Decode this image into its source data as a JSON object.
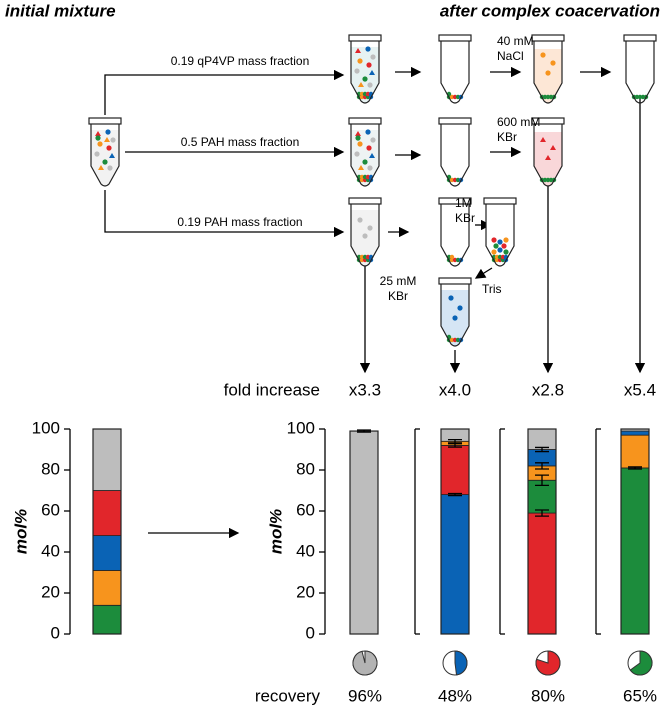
{
  "header": {
    "left": "initial mixture",
    "right": "after complex coacervation"
  },
  "diagram": {
    "routes": [
      "0.19 qP4VP mass fraction",
      "0.5 PAH mass fraction",
      "0.19 PAH mass fraction"
    ],
    "reagents": [
      [
        "40 mM",
        "NaCl"
      ],
      [
        "600 mM",
        "KBr"
      ],
      [
        "1M",
        "KBr"
      ],
      [
        "Tris"
      ],
      [
        "25 mM",
        "KBr"
      ]
    ]
  },
  "fold_increase": {
    "label": "fold increase",
    "values": [
      "x3.3",
      "x4.0",
      "x2.8",
      "x5.4"
    ]
  },
  "recovery": {
    "type": "pie",
    "label": "recovery",
    "colors": [
      "#b3b3b3",
      "#0a63b5",
      "#e1262b",
      "#1c8c3c"
    ],
    "values": [
      {
        "value": 96,
        "label": "96%"
      },
      {
        "value": 48,
        "label": "48%"
      },
      {
        "value": 80,
        "label": "80%"
      },
      {
        "value": 65,
        "label": "65%"
      }
    ]
  },
  "chart_data": [
    {
      "type": "bar",
      "stacked": true,
      "ylabel": "mol%",
      "ylim": [
        0,
        100
      ],
      "yticks": [
        0,
        20,
        40,
        60,
        80,
        100
      ],
      "series": [
        {
          "color": "#1c8c3c",
          "values": [
            14
          ]
        },
        {
          "color": "#f7941d",
          "values": [
            17
          ]
        },
        {
          "color": "#0a63b5",
          "values": [
            17
          ]
        },
        {
          "color": "#e1262b",
          "values": [
            22
          ]
        },
        {
          "color": "#bdbdbd",
          "values": [
            30
          ]
        }
      ]
    },
    {
      "type": "bar",
      "stacked": true,
      "ylabel": "mol%",
      "ylim": [
        0,
        100
      ],
      "yticks": [
        0,
        20,
        40,
        60,
        80,
        100
      ],
      "series": [
        {
          "color": "#bdbdbd",
          "values": [
            99
          ],
          "errors": [
            0.5
          ]
        }
      ]
    },
    {
      "type": "bar",
      "stacked": true,
      "ylim": [
        0,
        100
      ],
      "series": [
        {
          "color": "#0a63b5",
          "values": [
            68
          ],
          "errors": [
            0.5
          ]
        },
        {
          "color": "#e1262b",
          "values": [
            24
          ],
          "errors": [
            0.8
          ]
        },
        {
          "color": "#f7941d",
          "values": [
            2
          ],
          "errors": [
            0.8
          ]
        },
        {
          "color": "#bdbdbd",
          "values": [
            6
          ]
        }
      ]
    },
    {
      "type": "bar",
      "stacked": true,
      "ylim": [
        0,
        100
      ],
      "series": [
        {
          "color": "#e1262b",
          "values": [
            59
          ],
          "errors": [
            1.5
          ]
        },
        {
          "color": "#1c8c3c",
          "values": [
            16
          ],
          "errors": [
            2.5
          ]
        },
        {
          "color": "#f7941d",
          "values": [
            7
          ],
          "errors": [
            1.5
          ]
        },
        {
          "color": "#0a63b5",
          "values": [
            8
          ],
          "errors": [
            1
          ]
        },
        {
          "color": "#bdbdbd",
          "values": [
            10
          ]
        }
      ]
    },
    {
      "type": "bar",
      "stacked": true,
      "ylim": [
        0,
        100
      ],
      "series": [
        {
          "color": "#1c8c3c",
          "values": [
            81
          ],
          "errors": [
            0.5
          ]
        },
        {
          "color": "#f7941d",
          "values": [
            16
          ]
        },
        {
          "color": "#0a63b5",
          "values": [
            2
          ]
        },
        {
          "color": "#bdbdbd",
          "values": [
            1
          ]
        }
      ]
    }
  ]
}
